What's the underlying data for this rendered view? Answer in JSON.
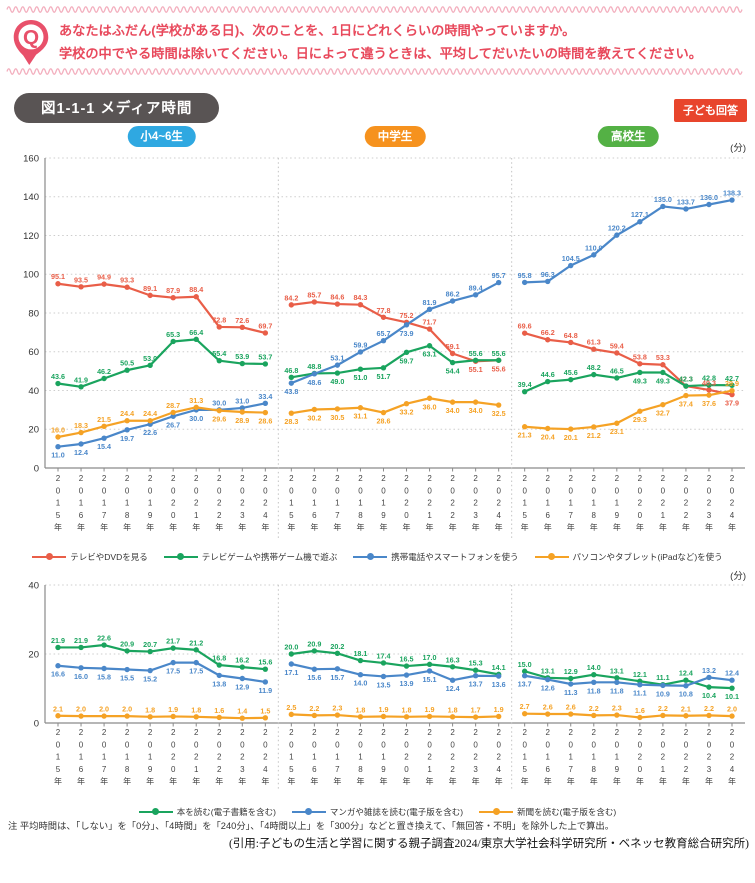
{
  "colors": {
    "accent_pink": "#e8495c",
    "wave_pink": "#f3afbe",
    "title_bg": "#595454",
    "answer_badge_bg": "#e8452c"
  },
  "question": {
    "icon_letter": "Q",
    "line1": "あなたはふだん(学校がある日)、次のことを、1日にどれくらいの時間やっていますか。",
    "line2": "学校の中でやる時間は除いてください。日によって違うときは、平均してだいたいの時間を教えてください。"
  },
  "figure": {
    "title": "図1-1-1 メディア時間",
    "respondent_badge": "子ども回答"
  },
  "groups": [
    {
      "label": "小4~6生",
      "color": "#2fa8e1"
    },
    {
      "label": "中学生",
      "color": "#f6921e"
    },
    {
      "label": "高校生",
      "color": "#54b145"
    }
  ],
  "years": [
    "2015年",
    "2016年",
    "2017年",
    "2018年",
    "2019年",
    "2020年",
    "2021年",
    "2022年",
    "2023年",
    "2024年"
  ],
  "chart_data": [
    {
      "type": "line",
      "unit": "(分)",
      "ylim": [
        0,
        160
      ],
      "yticks": [
        0,
        20,
        40,
        60,
        80,
        100,
        120,
        140,
        160
      ],
      "grid": "dotted-horizontal",
      "x_groups": [
        "小4~6生",
        "中学生",
        "高校生"
      ],
      "x": [
        "2015年",
        "2016年",
        "2017年",
        "2018年",
        "2019年",
        "2020年",
        "2021年",
        "2022年",
        "2023年",
        "2024年"
      ],
      "legend_position": "bottom",
      "series": [
        {
          "name": "テレビやDVDを見る",
          "color": "#e95e48",
          "values_by_group": [
            [
              95.1,
              93.5,
              94.9,
              93.3,
              89.1,
              87.9,
              88.4,
              72.8,
              72.6,
              69.7
            ],
            [
              84.2,
              85.7,
              84.6,
              84.3,
              77.8,
              75.2,
              71.7,
              59.1,
              55.1,
              55.6
            ],
            [
              69.6,
              66.2,
              64.8,
              61.3,
              59.4,
              53.8,
              53.3,
              42.3,
              40.3,
              37.9
            ]
          ]
        },
        {
          "name": "テレビゲームや携帯ゲーム機で遊ぶ",
          "color": "#1aa45e",
          "values_by_group": [
            [
              43.6,
              41.9,
              46.2,
              50.5,
              53.0,
              65.3,
              66.4,
              55.4,
              53.9,
              53.7
            ],
            [
              46.8,
              48.8,
              49.0,
              51.0,
              51.7,
              59.7,
              63.1,
              54.4,
              55.6,
              55.6
            ],
            [
              39.4,
              44.6,
              45.6,
              48.2,
              46.5,
              49.3,
              49.3,
              42.3,
              42.8,
              42.7
            ]
          ]
        },
        {
          "name": "携帯電話やスマートフォンを使う",
          "color": "#4a87c9",
          "values_by_group": [
            [
              11.0,
              12.4,
              15.4,
              19.7,
              22.6,
              26.7,
              30.0,
              30.0,
              31.0,
              33.4
            ],
            [
              43.8,
              48.6,
              53.1,
              59.9,
              65.7,
              73.9,
              81.9,
              86.2,
              89.4,
              95.7
            ],
            [
              95.8,
              96.3,
              104.5,
              110.0,
              120.2,
              127.1,
              135.0,
              133.7,
              136.0,
              138.3
            ]
          ]
        },
        {
          "name": "パソコンやタブレット(iPadなど)を使う",
          "color": "#f5a225",
          "values_by_group": [
            [
              16.0,
              18.3,
              21.5,
              24.4,
              24.4,
              28.7,
              31.3,
              29.6,
              28.9,
              28.6
            ],
            [
              28.3,
              30.2,
              30.5,
              31.1,
              28.6,
              33.2,
              36.0,
              34.0,
              34.0,
              32.5
            ],
            [
              21.3,
              20.4,
              20.1,
              21.2,
              23.1,
              29.3,
              32.7,
              37.4,
              37.6,
              39.9
            ]
          ]
        }
      ]
    },
    {
      "type": "line",
      "unit": "(分)",
      "ylim": [
        0,
        40
      ],
      "yticks": [
        0,
        20,
        40
      ],
      "grid": "dotted-horizontal",
      "x_groups": [
        "小4~6生",
        "中学生",
        "高校生"
      ],
      "x": [
        "2015年",
        "2016年",
        "2017年",
        "2018年",
        "2019年",
        "2020年",
        "2021年",
        "2022年",
        "2023年",
        "2024年"
      ],
      "legend_position": "bottom",
      "series": [
        {
          "name": "本を読む(電子書籍を含む)",
          "color": "#1aa45e",
          "values_by_group": [
            [
              21.9,
              21.9,
              22.6,
              20.9,
              20.7,
              21.7,
              21.2,
              16.8,
              16.2,
              15.6
            ],
            [
              20.0,
              20.9,
              20.2,
              18.1,
              17.4,
              16.5,
              17.0,
              16.3,
              15.3,
              14.1
            ],
            [
              15.0,
              13.1,
              12.9,
              14.0,
              13.1,
              12.1,
              11.1,
              12.4,
              10.4,
              10.1
            ]
          ]
        },
        {
          "name": "マンガや雑誌を読む(電子版を含む)",
          "color": "#4a87c9",
          "values_by_group": [
            [
              16.6,
              16.0,
              15.8,
              15.5,
              15.2,
              17.5,
              17.5,
              13.8,
              12.9,
              11.9
            ],
            [
              17.1,
              15.6,
              15.7,
              14.0,
              13.5,
              13.9,
              15.1,
              12.4,
              13.7,
              13.6
            ],
            [
              13.7,
              12.6,
              11.3,
              11.8,
              11.8,
              11.1,
              10.9,
              10.8,
              13.2,
              12.4
            ]
          ]
        },
        {
          "name": "新聞を読む(電子版を含む)",
          "color": "#f5a225",
          "values_by_group": [
            [
              2.1,
              2.0,
              2.0,
              2.0,
              1.8,
              1.9,
              1.8,
              1.6,
              1.4,
              1.5
            ],
            [
              2.5,
              2.2,
              2.3,
              1.8,
              1.9,
              1.8,
              1.9,
              1.8,
              1.7,
              1.9
            ],
            [
              2.7,
              2.6,
              2.6,
              2.2,
              2.3,
              1.6,
              2.2,
              2.1,
              2.2,
              2.0
            ]
          ]
        }
      ]
    }
  ],
  "footer": {
    "note": "注 平均時間は、「しない」を「0分」、「4時間」を「240分」、「4時間以上」を「300分」などと置き換えて、「無回答・不明」を除外した上で算出。",
    "citation": "(引用:子どもの生活と学習に関する親子調査2024/東京大学社会科学研究所・ベネッセ教育総合研究所)"
  }
}
